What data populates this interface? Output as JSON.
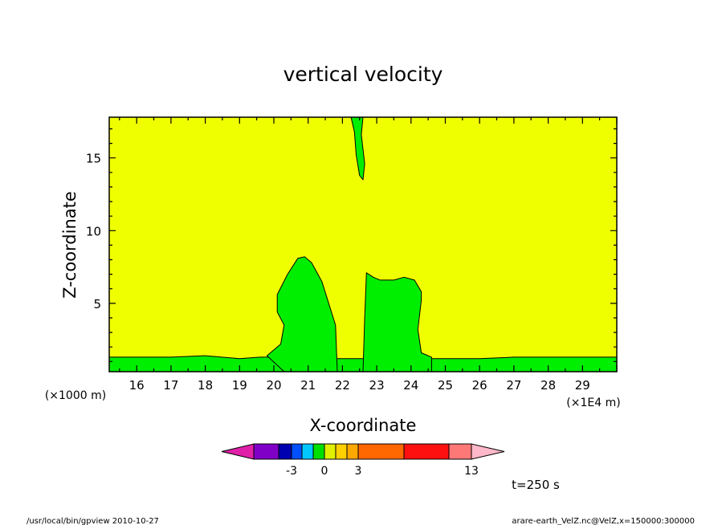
{
  "chart_data": {
    "type": "heatmap",
    "title": "vertical velocity",
    "xlabel": "X-coordinate",
    "ylabel": "Z-coordinate",
    "x_unit_label": "(×1E4 m)",
    "y_unit_label": "(×1000 m)",
    "x_range": [
      15.2,
      30.0
    ],
    "y_range": [
      0.3,
      17.8
    ],
    "x_ticks": [
      16,
      17,
      18,
      19,
      20,
      21,
      22,
      23,
      24,
      25,
      26,
      27,
      28,
      29
    ],
    "y_ticks": [
      5,
      10,
      15
    ],
    "background_color": "#f0ff00",
    "feature_color": "#00ee00",
    "regions": [
      {
        "name": "surface-layer",
        "color": "#00ee00",
        "x": [
          15.2,
          17.0,
          18.0,
          19.0,
          19.6,
          20.0,
          20.5,
          21.0,
          22.0,
          22.3,
          22.6,
          23.0,
          24.0,
          24.5,
          25.0,
          26.0,
          27.0,
          28.0,
          29.0,
          30.0,
          30.0,
          15.2
        ],
        "y": [
          1.3,
          1.3,
          1.4,
          1.2,
          1.3,
          1.3,
          1.3,
          1.2,
          1.2,
          1.2,
          1.2,
          1.2,
          1.2,
          1.2,
          1.2,
          1.2,
          1.3,
          1.3,
          1.3,
          1.3,
          0.3,
          0.3
        ]
      },
      {
        "name": "left-plume",
        "color": "#00ee00",
        "x": [
          19.8,
          20.2,
          20.3,
          20.1,
          20.1,
          20.4,
          20.7,
          20.9,
          21.1,
          21.4,
          21.8,
          21.85,
          20.3
        ],
        "y": [
          1.4,
          2.2,
          3.5,
          4.4,
          5.6,
          7.0,
          8.1,
          8.2,
          7.8,
          6.5,
          3.5,
          0.3,
          0.3
        ]
      },
      {
        "name": "right-plume",
        "color": "#00ee00",
        "x": [
          22.6,
          22.65,
          22.7,
          22.9,
          23.1,
          23.5,
          23.8,
          24.1,
          24.3,
          24.3,
          24.2,
          24.3,
          24.6,
          24.6
        ],
        "y": [
          0.3,
          4.0,
          7.1,
          6.8,
          6.6,
          6.6,
          6.8,
          6.6,
          5.8,
          5.2,
          3.2,
          1.6,
          1.3,
          0.3
        ]
      },
      {
        "name": "upper-plume",
        "color": "#00ee00",
        "x": [
          22.25,
          22.35,
          22.4,
          22.5,
          22.6,
          22.65,
          22.55,
          22.6,
          22.65
        ],
        "y": [
          17.8,
          16.8,
          15.2,
          13.8,
          13.5,
          14.6,
          16.6,
          17.8,
          17.8
        ]
      }
    ],
    "colorbar": {
      "colors": [
        "#e020a8",
        "#8000c8",
        "#0000b0",
        "#0050ff",
        "#00c8ff",
        "#00e000",
        "#e0f000",
        "#ffd000",
        "#ffa800",
        "#ff6800",
        "#ff1010",
        "#ff7878",
        "#ffb8c8"
      ],
      "tick_labels": [
        "-3",
        "0",
        "3",
        "13"
      ]
    },
    "annotation": "t=250 s"
  },
  "footer": {
    "left": "/usr/local/bin/gpview   2010-10-27",
    "right": "arare-earth_VelZ.nc@VelZ,x=150000:300000"
  }
}
